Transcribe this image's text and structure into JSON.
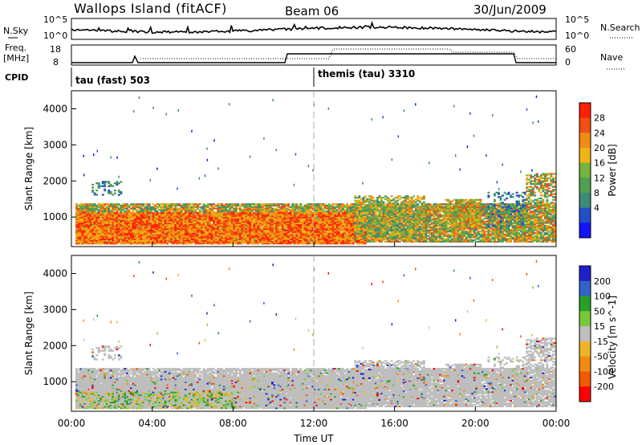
{
  "header": {
    "title": "Wallops Island (fitACF)",
    "beam": "Beam 06",
    "date": "30/Jun/2009"
  },
  "top_panels": {
    "nsky_label": "N.Sky",
    "nsky_ticks": [
      "10^5",
      "10^0"
    ],
    "nsearch_label": "N.Search",
    "freq_label_1": "Freq.",
    "freq_label_2": "[MHz]",
    "freq_ticks": [
      "18",
      "8"
    ],
    "nave_label": "Nave",
    "nave_ticks": [
      "60",
      "0"
    ],
    "cpid_label": "CPID",
    "cpid_1": "tau (fast) 503",
    "cpid_2": "themis (tau) 3310"
  },
  "colors": {
    "power_scale": [
      "#1414ff",
      "#2050c8",
      "#3c8c78",
      "#50a050",
      "#78b43c",
      "#f0b414",
      "#f08c14",
      "#f05014",
      "#ff1e00"
    ],
    "velocity_scale": [
      "#2020c8",
      "#3264c8",
      "#28a028",
      "#78c83c",
      "#bebebe",
      "#f0b428",
      "#f08c14",
      "#f05a00",
      "#ff0000"
    ]
  },
  "chart_data": [
    {
      "type": "heatmap",
      "name": "power",
      "ylabel": "Slant Range [km]",
      "yticks": [
        "4000",
        "3000",
        "2000",
        "1000"
      ],
      "ylim": [
        180,
        4500
      ],
      "xlim": [
        0,
        24
      ],
      "colorbar_label": "Power [dB]",
      "colorbar_ticks": [
        "28",
        "24",
        "20",
        "16",
        "12",
        "8",
        "4"
      ],
      "colorbar_range": [
        0,
        32
      ]
    },
    {
      "type": "heatmap",
      "name": "velocity",
      "ylabel": "Slant Range [km]",
      "yticks": [
        "4000",
        "3000",
        "2000",
        "1000"
      ],
      "ylim": [
        180,
        4500
      ],
      "xlim": [
        0,
        24
      ],
      "colorbar_label": "Velocity [m s^-1]",
      "colorbar_ticks": [
        "200",
        "100",
        "50",
        "15",
        "-15",
        "-50",
        "-100",
        "-200"
      ],
      "xticks": [
        "00:00",
        "04:00",
        "08:00",
        "12:00",
        "16:00",
        "20:00",
        "00:00"
      ],
      "xlabel": "Time UT"
    }
  ]
}
